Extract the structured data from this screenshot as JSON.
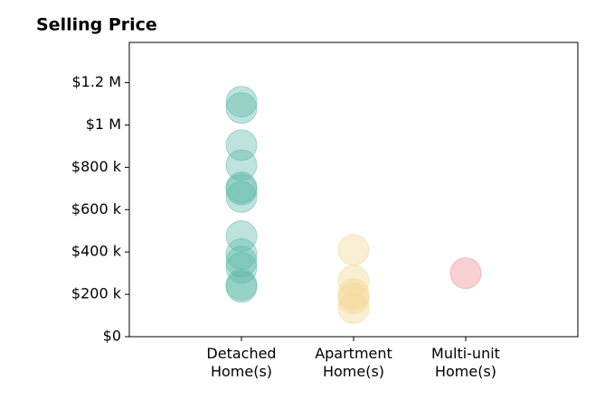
{
  "chart_data": {
    "type": "strip",
    "title": "Selling Price",
    "categories": [
      "Detached Home(s)",
      "Apartment Home(s)",
      "Multi-unit Home(s)"
    ],
    "values": [
      [
        1110000,
        1080000,
        905000,
        810000,
        705000,
        695000,
        660000,
        475000,
        390000,
        355000,
        325000,
        245000,
        235000
      ],
      [
        410000,
        265000,
        200000,
        180000,
        135000
      ],
      [
        300000
      ]
    ],
    "colors": [
      "#5cb8a8",
      "#f3d68f",
      "#ee8a93"
    ],
    "ylim": [
      0,
      1390000
    ],
    "yticks": [
      {
        "value": 0,
        "label": "$0"
      },
      {
        "value": 200000,
        "label": "$200 k"
      },
      {
        "value": 400000,
        "label": "$400 k"
      },
      {
        "value": 600000,
        "label": "$600 k"
      },
      {
        "value": 800000,
        "label": "$800 k"
      },
      {
        "value": 1000000,
        "label": "$1 M"
      },
      {
        "value": 1200000,
        "label": "$1.2 M"
      }
    ]
  }
}
